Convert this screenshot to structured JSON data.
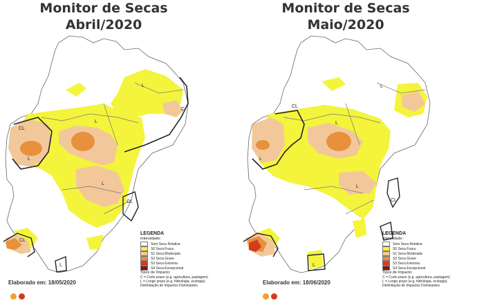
{
  "panels": [
    {
      "title_line1": "Monitor de Secas",
      "title_line2": "Abril/2020",
      "elaborado": "Elaborado em: 18/05/2020"
    },
    {
      "title_line1": "Monitor de Secas",
      "title_line2": "Maio/2020",
      "elaborado": "Elaborado em: 18/06/2020"
    }
  ],
  "legend": {
    "title": "LEGENDA",
    "intensity_label": "Intensidade:",
    "items": [
      {
        "label": "Sem Seca Relativa",
        "color": "#ffffff"
      },
      {
        "label": "S0 Seca Fraca",
        "color": "#f4f43c"
      },
      {
        "label": "S1 Seca Moderada",
        "color": "#f2c89a"
      },
      {
        "label": "S2 Seca Grave",
        "color": "#e8903c"
      },
      {
        "label": "S3 Seca Extrema",
        "color": "#d43a1e"
      },
      {
        "label": "S4 Seca Excepcional",
        "color": "#7a1b10"
      }
    ],
    "impact_title": "Tipos de Impacto:",
    "impact_lines": [
      "C = Curto prazo (e.g. agricultura, pastagem)",
      "L = Longo prazo (e.g. hidrologia, ecologia)",
      "Delimitação de Impactos Dominantes"
    ]
  },
  "map_labels": {
    "L": "L",
    "CL": "CL",
    "C": "C"
  },
  "colors": {
    "outline": "#555555",
    "impact_line": "#222222",
    "dot_orange": "#f0a030",
    "dot_red": "#d43a1e"
  }
}
